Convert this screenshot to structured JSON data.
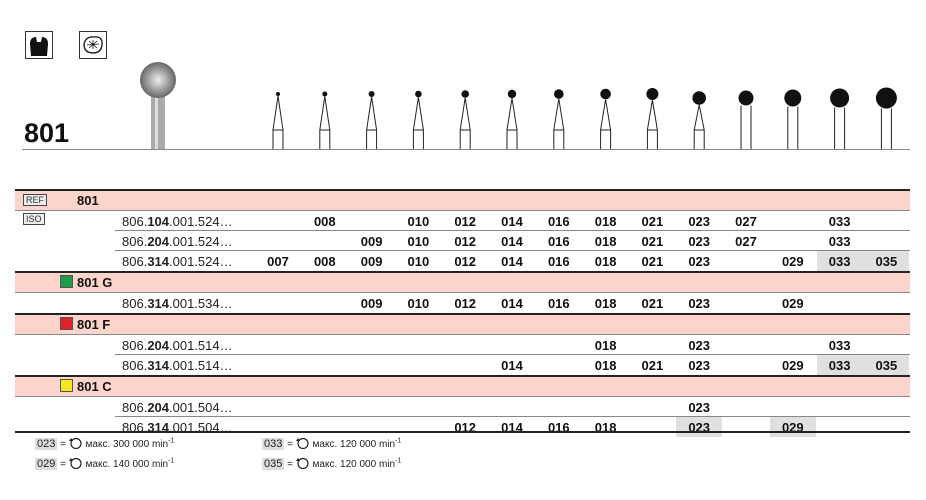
{
  "title": "801",
  "icons": [
    "tooth-crown-icon",
    "occlusal-surface-icon"
  ],
  "ref_tag": "REF",
  "iso_tag": "ISO",
  "ref_label": "801",
  "sizes": [
    "007",
    "008",
    "009",
    "010",
    "012",
    "014",
    "016",
    "018",
    "021",
    "023",
    "027",
    "029",
    "033",
    "035"
  ],
  "groups": [
    {
      "label": "801",
      "color": null,
      "rows": [
        {
          "pre": "806.",
          "bold": "104",
          "post": ".001.524…",
          "values": [
            "",
            "008",
            "",
            "010",
            "012",
            "014",
            "016",
            "018",
            "021",
            "023",
            "027",
            "",
            "033",
            ""
          ],
          "highlight": []
        },
        {
          "pre": "806.",
          "bold": "204",
          "post": ".001.524…",
          "values": [
            "",
            "",
            "009",
            "010",
            "012",
            "014",
            "016",
            "018",
            "021",
            "023",
            "027",
            "",
            "033",
            ""
          ],
          "highlight": []
        },
        {
          "pre": "806.",
          "bold": "314",
          "post": ".001.524…",
          "values": [
            "007",
            "008",
            "009",
            "010",
            "012",
            "014",
            "016",
            "018",
            "021",
            "023",
            "",
            "029",
            "033",
            "035"
          ],
          "highlight": [
            12,
            13
          ]
        }
      ]
    },
    {
      "label": "801 G",
      "color": "#1e9c4a",
      "rows": [
        {
          "pre": "806.",
          "bold": "314",
          "post": ".001.534…",
          "values": [
            "",
            "",
            "009",
            "010",
            "012",
            "014",
            "016",
            "018",
            "021",
            "023",
            "",
            "029",
            "",
            ""
          ],
          "highlight": []
        }
      ]
    },
    {
      "label": "801 F",
      "color": "#e0202a",
      "rows": [
        {
          "pre": "806.",
          "bold": "204",
          "post": ".001.514…",
          "values": [
            "",
            "",
            "",
            "",
            "",
            "",
            "",
            "018",
            "",
            "023",
            "",
            "",
            "033",
            ""
          ],
          "highlight": []
        },
        {
          "pre": "806.",
          "bold": "314",
          "post": ".001.514…",
          "values": [
            "",
            "",
            "",
            "",
            "",
            "014",
            "",
            "018",
            "021",
            "023",
            "",
            "029",
            "033",
            "035"
          ],
          "highlight": [
            12,
            13
          ]
        }
      ]
    },
    {
      "label": "801 C",
      "color": "#f5e622",
      "rows": [
        {
          "pre": "806.",
          "bold": "204",
          "post": ".001.504…",
          "values": [
            "",
            "",
            "",
            "",
            "",
            "",
            "",
            "",
            "",
            "023",
            "",
            "",
            "",
            ""
          ],
          "highlight": []
        },
        {
          "pre": "806.",
          "bold": "314",
          "post": ".001.504…",
          "values": [
            "",
            "",
            "",
            "",
            "012",
            "014",
            "016",
            "018",
            "",
            "023",
            "",
            "029",
            "",
            ""
          ],
          "highlight": [
            9,
            11
          ]
        }
      ]
    }
  ],
  "legend": [
    {
      "size": "023",
      "eq": "=",
      "text": "макс. 300 000 min",
      "exp": "-1"
    },
    {
      "size": "029",
      "eq": "=",
      "text": "макс. 140 000 min",
      "exp": "-1"
    },
    {
      "size": "033",
      "eq": "=",
      "text": "макс. 120 000 min",
      "exp": "-1"
    },
    {
      "size": "035",
      "eq": "=",
      "text": "макс. 120 000 min",
      "exp": "-1"
    }
  ]
}
